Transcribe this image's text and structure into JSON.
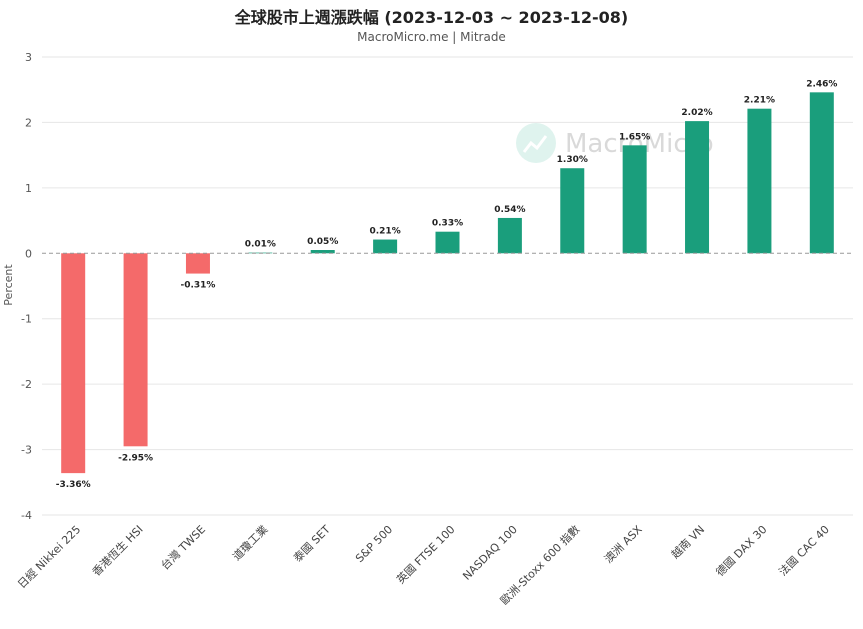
{
  "title": "全球股市上週漲跌幅 (2023-12-03 ~ 2023-12-08)",
  "subtitle": "MacroMicro.me | Mitrade",
  "watermark": "MacroMicro",
  "colors": {
    "positive": "#1a9e7c",
    "negative": "#f46a6a",
    "grid": "#e6e6e6",
    "zero": "#999999"
  },
  "chart_data": {
    "type": "bar",
    "categories": [
      "日經 Nikkei 225",
      "香港恆生 HSI",
      "台灣 TWSE",
      "道瓊工業",
      "泰國 SET",
      "S&P 500",
      "英國 FTSE 100",
      "NASDAQ 100",
      "歐洲-Stoxx 600 指數",
      "澳洲 ASX",
      "越南 VN",
      "德國 DAX 30",
      "法國 CAC 40"
    ],
    "values": [
      -3.36,
      -2.95,
      -0.31,
      0.01,
      0.05,
      0.21,
      0.33,
      0.54,
      1.3,
      1.65,
      2.02,
      2.21,
      2.46
    ],
    "value_labels": [
      "-3.36%",
      "-2.95%",
      "-0.31%",
      "0.01%",
      "0.05%",
      "0.21%",
      "0.33%",
      "0.54%",
      "1.30%",
      "1.65%",
      "2.02%",
      "2.21%",
      "2.46%"
    ],
    "ylabel": "Percent",
    "ylim": [
      -4,
      3
    ],
    "yticks": [
      "-4",
      "-3",
      "-2",
      "-1",
      "0",
      "1",
      "2",
      "3"
    ],
    "grid": true
  }
}
